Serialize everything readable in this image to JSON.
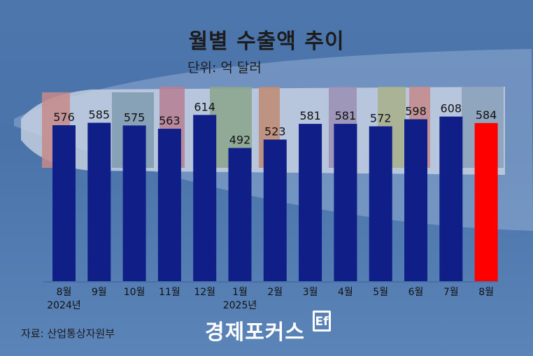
{
  "header": {
    "title": "월별 수출액 추이",
    "unit": "단위: 억 달러"
  },
  "footer": {
    "source": "자료: 산업통상자원부",
    "logo_text": "경제포커스",
    "logo_mark": "Ef"
  },
  "colors": {
    "bar": "#0f1f87",
    "highlight": "#ff0000",
    "sea": "#4d76ad"
  },
  "chart_data": {
    "type": "bar",
    "title": "월별 수출액 추이",
    "ylabel": "단위: 억 달러",
    "xlabel": "",
    "categories": [
      "8월",
      "9월",
      "10월",
      "11월",
      "12월",
      "1월",
      "2월",
      "3월",
      "4월",
      "5월",
      "6월",
      "7월",
      "8월"
    ],
    "year_labels": [
      "2024년",
      "",
      "",
      "",
      "",
      "2025년",
      "",
      "",
      "",
      "",
      "",
      "",
      ""
    ],
    "values": [
      576,
      585,
      575,
      563,
      614,
      492,
      523,
      581,
      581,
      572,
      598,
      608,
      584
    ],
    "highlight_index": 12,
    "ylim": [
      0,
      620
    ],
    "grid": false,
    "legend": "none"
  }
}
